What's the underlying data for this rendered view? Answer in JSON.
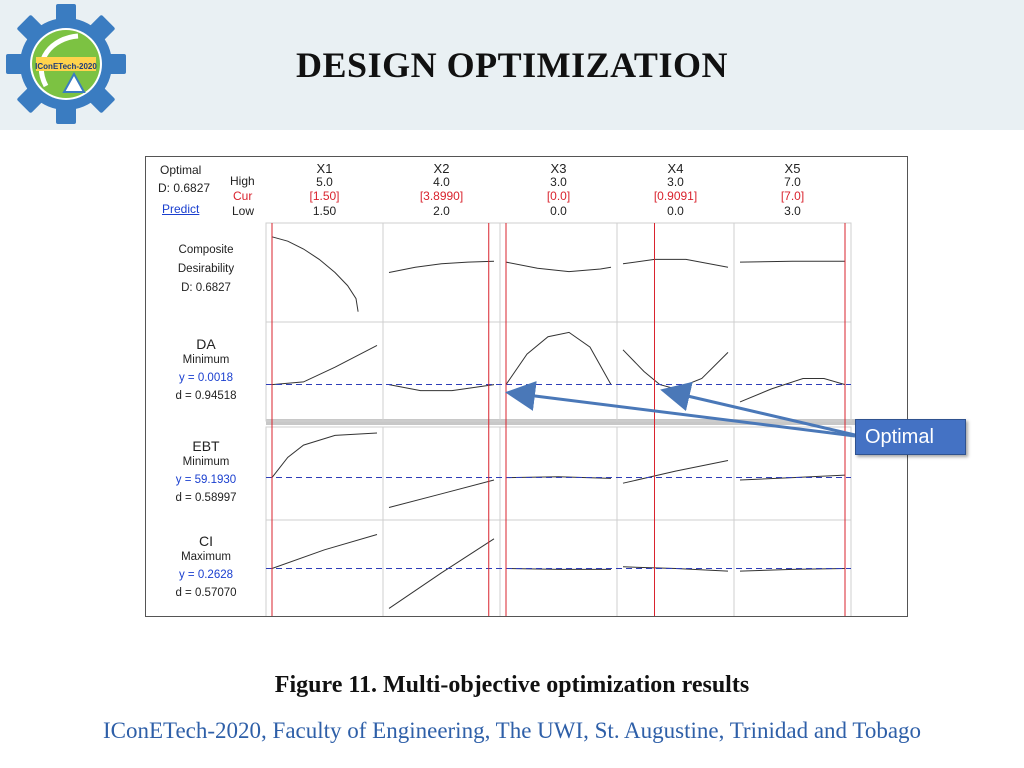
{
  "page": {
    "title": "DESIGN OPTIMIZATION",
    "caption": "Figure 11. Multi-objective optimization results",
    "footer": "IConETech-2020, Faculty of Engineering, The UWI, St. Augustine, Trinidad and Tobago",
    "logo_text": "IConETech-2020",
    "callout": "Optimal"
  },
  "colors": {
    "accent_blue": "#4472c4",
    "footer_blue": "#2e5fa8",
    "current_red": "#d9232e",
    "response_blue": "#2e3db8"
  },
  "chart_data": {
    "type": "line",
    "header": {
      "optimal_label": "Optimal",
      "d_label": "D: 0.6827",
      "predict_label": "Predict",
      "row_labels": [
        "High",
        "Cur",
        "Low"
      ]
    },
    "factors": [
      {
        "name": "X1",
        "high": "5.0",
        "cur": "[1.50]",
        "low": "1.50",
        "cur_frac": 0.0
      },
      {
        "name": "X2",
        "high": "4.0",
        "cur": "[3.8990]",
        "low": "2.0",
        "cur_frac": 0.95
      },
      {
        "name": "X3",
        "high": "3.0",
        "cur": "[0.0]",
        "low": "0.0",
        "cur_frac": 0.0
      },
      {
        "name": "X4",
        "high": "3.0",
        "cur": "[0.9091]",
        "low": "0.0",
        "cur_frac": 0.3
      },
      {
        "name": "X5",
        "high": "7.0",
        "cur": "[7.0]",
        "low": "3.0",
        "cur_frac": 1.0
      }
    ],
    "responses": [
      {
        "lines": [
          "Composite",
          "Desirability",
          "D: 0.6827"
        ],
        "goal_frac": null,
        "curves": [
          [
            [
              0,
              0.91
            ],
            [
              0.15,
              0.86
            ],
            [
              0.3,
              0.77
            ],
            [
              0.45,
              0.65
            ],
            [
              0.6,
              0.5
            ],
            [
              0.72,
              0.35
            ],
            [
              0.8,
              0.2
            ],
            [
              0.82,
              0.05
            ]
          ],
          [
            [
              0,
              0.5
            ],
            [
              0.25,
              0.56
            ],
            [
              0.5,
              0.6
            ],
            [
              0.75,
              0.62
            ],
            [
              1,
              0.63
            ]
          ],
          [
            [
              0,
              0.62
            ],
            [
              0.3,
              0.55
            ],
            [
              0.6,
              0.51
            ],
            [
              0.9,
              0.54
            ],
            [
              1,
              0.56
            ]
          ],
          [
            [
              0,
              0.6
            ],
            [
              0.3,
              0.65
            ],
            [
              0.6,
              0.65
            ],
            [
              1,
              0.56
            ]
          ],
          [
            [
              0,
              0.62
            ],
            [
              0.5,
              0.63
            ],
            [
              1,
              0.63
            ]
          ]
        ]
      },
      {
        "lines": [
          "DA",
          "Minimum",
          "y = 0.0018",
          "d = 0.94518"
        ],
        "goal_frac": 0.35,
        "curves": [
          [
            [
              0,
              0.35
            ],
            [
              0.3,
              0.38
            ],
            [
              0.6,
              0.55
            ],
            [
              1,
              0.8
            ]
          ],
          [
            [
              0,
              0.35
            ],
            [
              0.3,
              0.28
            ],
            [
              0.6,
              0.28
            ],
            [
              1,
              0.35
            ]
          ],
          [
            [
              0,
              0.35
            ],
            [
              0.2,
              0.7
            ],
            [
              0.4,
              0.9
            ],
            [
              0.6,
              0.95
            ],
            [
              0.8,
              0.78
            ],
            [
              1,
              0.35
            ]
          ],
          [
            [
              0,
              0.75
            ],
            [
              0.2,
              0.5
            ],
            [
              0.35,
              0.35
            ],
            [
              0.5,
              0.3
            ],
            [
              0.75,
              0.42
            ],
            [
              1,
              0.72
            ]
          ],
          [
            [
              0,
              0.15
            ],
            [
              0.3,
              0.3
            ],
            [
              0.6,
              0.42
            ],
            [
              0.8,
              0.42
            ],
            [
              1,
              0.35
            ]
          ]
        ]
      },
      {
        "lines": [
          "EBT",
          "Minimum",
          "y = 59.1930",
          "d = 0.58997"
        ],
        "goal_frac": 0.45,
        "curves": [
          [
            [
              0,
              0.45
            ],
            [
              0.15,
              0.7
            ],
            [
              0.3,
              0.85
            ],
            [
              0.6,
              0.97
            ],
            [
              1,
              1
            ]
          ],
          [
            [
              0,
              0.08
            ],
            [
              0.5,
              0.25
            ],
            [
              1,
              0.42
            ]
          ],
          [
            [
              0,
              0.45
            ],
            [
              0.5,
              0.46
            ],
            [
              1,
              0.44
            ]
          ],
          [
            [
              0,
              0.38
            ],
            [
              0.5,
              0.53
            ],
            [
              1,
              0.66
            ]
          ],
          [
            [
              0,
              0.42
            ],
            [
              0.5,
              0.45
            ],
            [
              1,
              0.48
            ]
          ]
        ]
      },
      {
        "lines": [
          "CI",
          "Maximum",
          "y = 0.2628",
          "d = 0.57070"
        ],
        "goal_frac": 0.5,
        "curves": [
          [
            [
              0,
              0.5
            ],
            [
              0.5,
              0.72
            ],
            [
              1,
              0.9
            ]
          ],
          [
            [
              0,
              0.03
            ],
            [
              0.5,
              0.45
            ],
            [
              1,
              0.85
            ]
          ],
          [
            [
              0,
              0.5
            ],
            [
              0.5,
              0.49
            ],
            [
              1,
              0.49
            ]
          ],
          [
            [
              0,
              0.52
            ],
            [
              0.5,
              0.5
            ],
            [
              1,
              0.47
            ]
          ],
          [
            [
              0,
              0.47
            ],
            [
              0.5,
              0.49
            ],
            [
              1,
              0.5
            ]
          ]
        ]
      }
    ]
  }
}
